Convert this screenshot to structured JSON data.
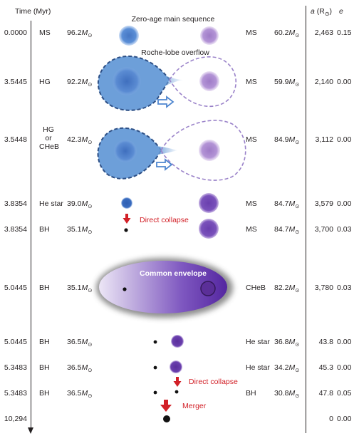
{
  "header": {
    "time_label": "Time (Myr)",
    "a_label": "a",
    "a_unit_open": " (R",
    "a_unit_sub": "⊙",
    "a_unit_close": ")",
    "e_label": "e"
  },
  "stages": [
    {
      "time": "0.0000",
      "left_type": "MS",
      "left_mass": "96.2M",
      "right_type": "MS",
      "right_mass": "60.2M",
      "a": "2,463",
      "e": "0.15"
    },
    {
      "time": "3.5445",
      "left_type": "HG",
      "left_mass": "92.2M",
      "right_type": "MS",
      "right_mass": "59.9M",
      "a": "2,140",
      "e": "0.00"
    },
    {
      "time": "3.5448",
      "left_type": "HG\nor\nCHeB",
      "left_mass": "42.3M",
      "right_type": "MS",
      "right_mass": "84.9M",
      "a": "3,112",
      "e": "0.00"
    },
    {
      "time": "3.8354",
      "left_type": "He star",
      "left_mass": "39.0M",
      "right_type": "MS",
      "right_mass": "84.7M",
      "a": "3,579",
      "e": "0.00"
    },
    {
      "time": "3.8354",
      "left_type": "BH",
      "left_mass": "35.1M",
      "right_type": "MS",
      "right_mass": "84.7M",
      "a": "3,700",
      "e": "0.03"
    },
    {
      "time": "5.0445",
      "left_type": "BH",
      "left_mass": "35.1M",
      "right_type": "CHeB",
      "right_mass": "82.2M",
      "a": "3,780",
      "e": "0.03"
    },
    {
      "time": "5.0445",
      "left_type": "BH",
      "left_mass": "36.5M",
      "right_type": "He star",
      "right_mass": "36.8M",
      "a": "43.8",
      "e": "0.00"
    },
    {
      "time": "5.3483",
      "left_type": "BH",
      "left_mass": "36.5M",
      "right_type": "He star",
      "right_mass": "34.2M",
      "a": "45.3",
      "e": "0.00"
    },
    {
      "time": "5.3483",
      "left_type": "BH",
      "left_mass": "36.5M",
      "right_type": "BH",
      "right_mass": "30.8M",
      "a": "47.8",
      "e": "0.05"
    },
    {
      "time": "10,294",
      "left_type": "",
      "left_mass": "",
      "right_type": "",
      "right_mass": "",
      "a": "0",
      "e": "0.00"
    }
  ],
  "sun_symbol": "⊙",
  "annotations": {
    "zams": "Zero-age main sequence",
    "rlof": "Roche-lobe overflow",
    "direct_collapse_1": "Direct collapse",
    "common_envelope": "Common envelope",
    "direct_collapse_2": "Direct collapse",
    "merger": "Merger"
  },
  "colors": {
    "blue_star": "#4a7fc6",
    "purple_star": "#8e64b8",
    "roche_fill": "#6d9fd9",
    "transfer_arrow": "#4f86cf",
    "red_arrow": "#d22027",
    "envelope_dark": "#5a2ea0",
    "envelope_light": "#e8e0f4",
    "black_hole": "#111111"
  }
}
